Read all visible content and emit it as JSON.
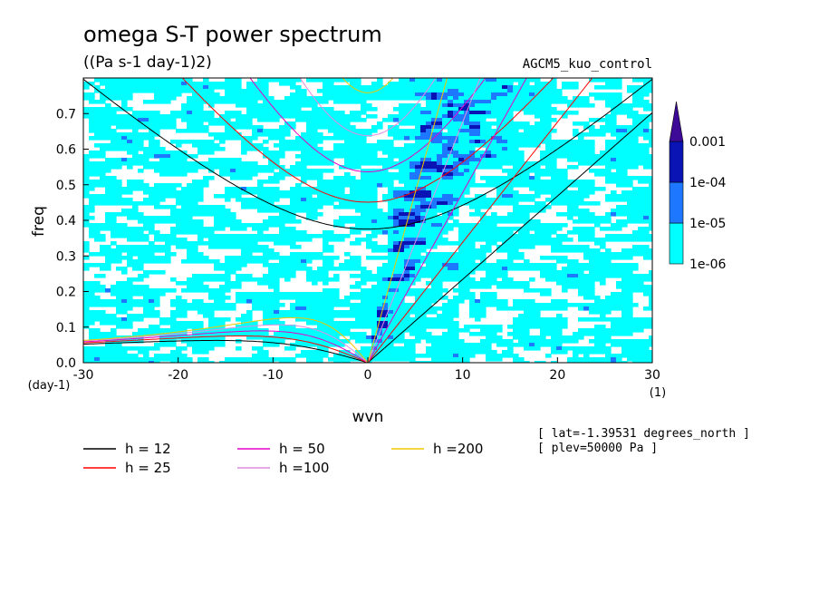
{
  "chart_data": {
    "type": "heatmap",
    "title": "omega S-T power spectrum",
    "subtitle": "((Pa s-1 day-1)2)",
    "model_label": "AGCM5_kuo_control",
    "xlabel": "wvn",
    "x_unit": "(1)",
    "ylabel": "freq",
    "y_unit": "(day-1)",
    "xlim": [
      -30,
      30
    ],
    "ylim": [
      0,
      0.8
    ],
    "x_ticks": [
      -30,
      -20,
      -10,
      0,
      10,
      20,
      30
    ],
    "x_tick_labels": [
      "-30",
      "-20",
      "-10",
      "0",
      "10",
      "20",
      "30"
    ],
    "y_ticks": [
      0,
      0.1,
      0.2,
      0.3,
      0.4,
      0.5,
      0.6,
      0.7
    ],
    "y_tick_labels": [
      "0.0",
      "0.1",
      "0.2",
      "0.3",
      "0.4",
      "0.5",
      "0.6",
      "0.7"
    ],
    "colorbar": {
      "levels": [
        1e-06,
        1e-05,
        0.0001,
        0.001
      ],
      "labels": [
        "1e-06",
        "1e-05",
        "1e-04",
        "0.001"
      ],
      "colors": [
        "#00ffff",
        "#1e78ff",
        "#0a14b4",
        "#3c0a96"
      ]
    },
    "dispersion_curves": [
      {
        "label": "h = 12",
        "h": 12,
        "color": "#000000"
      },
      {
        "label": "h = 25",
        "h": 25,
        "color": "#ff0000"
      },
      {
        "label": "h = 50",
        "h": 50,
        "color": "#e600c8"
      },
      {
        "label": "h =100",
        "h": 100,
        "color": "#e08ce0"
      },
      {
        "label": "h =200",
        "h": 200,
        "color": "#f0c800"
      }
    ],
    "annotations": [
      "[ lat=-1.39531 degrees_north ]",
      "[ plev=50000 Pa ]"
    ]
  }
}
